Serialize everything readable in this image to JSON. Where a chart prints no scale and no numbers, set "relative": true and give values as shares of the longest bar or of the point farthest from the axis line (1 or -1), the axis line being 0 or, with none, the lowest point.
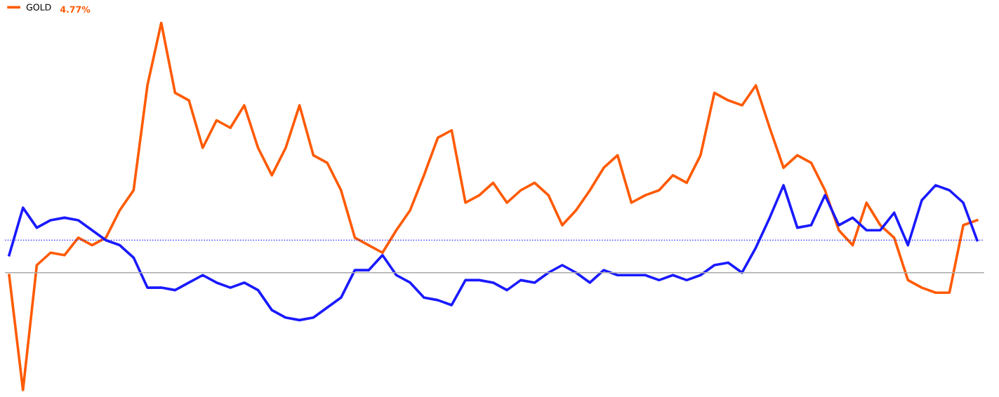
{
  "chart_data": {
    "type": "line",
    "relative": true,
    "legend": "top left",
    "marker": "none",
    "line_style": "solid",
    "categories": [
      null,
      null,
      null,
      null,
      null,
      null,
      null,
      null,
      null,
      null,
      null,
      null,
      null,
      null,
      null,
      null,
      null,
      null,
      null,
      null,
      null,
      null,
      null,
      null,
      null,
      null,
      null,
      null,
      null,
      null,
      null,
      null,
      null,
      null,
      null,
      null,
      null,
      null,
      null,
      null,
      null,
      null,
      null,
      null,
      null,
      null,
      null,
      null,
      null,
      null,
      null,
      null,
      null,
      null,
      null,
      null,
      null,
      null,
      null,
      null,
      null,
      null,
      null,
      null,
      null,
      null,
      null,
      null,
      null,
      null,
      null
    ],
    "series": [
      {
        "name": "GOLD",
        "color": "#ff5a00",
        "values": [
          -0.01,
          -0.47,
          0.03,
          0.08,
          0.07,
          0.14,
          0.11,
          0.14,
          0.25,
          0.33,
          0.75,
          1.0,
          0.72,
          0.69,
          0.5,
          0.61,
          0.58,
          0.67,
          0.5,
          0.39,
          0.5,
          0.67,
          0.47,
          0.44,
          0.33,
          0.14,
          0.11,
          0.08,
          0.17,
          0.25,
          0.39,
          0.54,
          0.57,
          0.28,
          0.31,
          0.36,
          0.28,
          0.33,
          0.36,
          0.31,
          0.19,
          0.25,
          0.33,
          0.42,
          0.47,
          0.28,
          0.31,
          0.33,
          0.39,
          0.36,
          0.47,
          0.72,
          0.69,
          0.67,
          0.75,
          0.58,
          0.42,
          0.47,
          0.44,
          0.33,
          0.17,
          0.11,
          0.28,
          0.19,
          0.14,
          -0.03,
          -0.06,
          -0.08,
          -0.08,
          0.19,
          0.21
        ]
      },
      {
        "color": "#1a1aff",
        "values": [
          0.07,
          0.26,
          0.18,
          0.21,
          0.22,
          0.21,
          0.17,
          0.13,
          0.11,
          0.06,
          -0.06,
          -0.06,
          -0.07,
          -0.04,
          -0.01,
          -0.04,
          -0.06,
          -0.04,
          -0.07,
          -0.15,
          -0.18,
          -0.19,
          -0.18,
          -0.14,
          -0.1,
          0.01,
          0.01,
          0.07,
          -0.01,
          -0.04,
          -0.1,
          -0.11,
          -0.13,
          -0.03,
          -0.03,
          -0.04,
          -0.07,
          -0.03,
          -0.04,
          0,
          0.03,
          0,
          -0.04,
          0.01,
          -0.01,
          -0.01,
          -0.01,
          -0.03,
          -0.01,
          -0.03,
          -0.01,
          0.03,
          0.04,
          0,
          0.1,
          0.22,
          0.35,
          0.18,
          0.19,
          0.31,
          0.19,
          0.22,
          0.17,
          0.17,
          0.24,
          0.11,
          0.29,
          0.35,
          0.33,
          0.28,
          0.13
        ]
      }
    ],
    "ref_lines": [
      {
        "axis": "y",
        "value": 0.13,
        "color": "#1a1aff",
        "line_style": "dotted"
      }
    ],
    "annotations": [
      "4.77%"
    ]
  }
}
